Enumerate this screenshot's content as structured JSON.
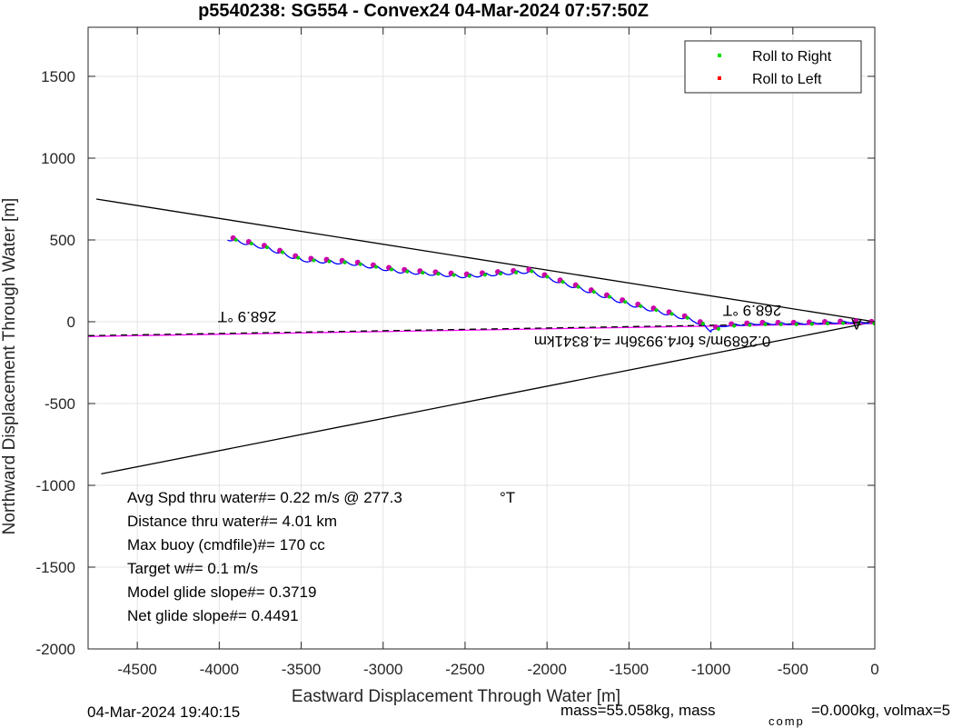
{
  "chart_data": {
    "type": "line",
    "title": "p5540238: SG554 - Convex24 04-Mar-2024 07:57:50Z",
    "xlabel": "Eastward Displacement Through Water [m]",
    "ylabel": "Northward Displacement Through Water [m]",
    "xlim": [
      -4800,
      0
    ],
    "ylim": [
      -2000,
      1800
    ],
    "xticks": [
      -4500,
      -4000,
      -3500,
      -3000,
      -2500,
      -2000,
      -1500,
      -1000,
      -500,
      0
    ],
    "yticks": [
      -2000,
      -1500,
      -1000,
      -500,
      0,
      500,
      1000,
      1500
    ],
    "xtick_labels": [
      "-4500",
      "-4000",
      "-3500",
      "-3000",
      "-2500",
      "-2000",
      "-1500",
      "-1000",
      "-500",
      "0"
    ],
    "ytick_labels": [
      "-2000",
      "-1500",
      "-1000",
      "-500",
      "0",
      "500",
      "1000",
      "1500"
    ],
    "grid": true,
    "legend_position": "top-right",
    "legend": [
      {
        "label": "Roll to Right",
        "color": "#00dd00"
      },
      {
        "label": "Roll to Left",
        "color": "#ff0000"
      }
    ],
    "track_color": "#0000ff",
    "track_anchors": {
      "x": [
        0,
        -150,
        -300,
        -500,
        -700,
        -900,
        -1000,
        -1100,
        -1500,
        -2000,
        -2100,
        -2500,
        -2900,
        -3200,
        -3500,
        -3700,
        -3950
      ],
      "y": [
        0,
        5,
        0,
        -5,
        -5,
        -15,
        -40,
        20,
        120,
        280,
        320,
        290,
        320,
        370,
        390,
        460,
        520
      ]
    },
    "envelope_lines": [
      {
        "name": "upper",
        "x": [
          -4750,
          0
        ],
        "y": [
          750,
          0
        ],
        "color": "#000000"
      },
      {
        "name": "lower",
        "x": [
          -4720,
          0
        ],
        "y": [
          -930,
          0
        ],
        "color": "#000000"
      }
    ],
    "heading_lines": [
      {
        "name": "magenta",
        "x": [
          -4800,
          0
        ],
        "y": [
          -90,
          -10
        ],
        "color": "#ff00ff"
      },
      {
        "name": "dashed",
        "x": [
          -4800,
          0
        ],
        "y": [
          -85,
          -5
        ],
        "color": "#000000",
        "dashed": true
      }
    ],
    "annotations": {
      "heading_left": "268.9 °T",
      "heading_right": "268.9 °T",
      "speed_label": "0.2689m/s for4.9936hr =4.8341km",
      "end_marker": "A"
    },
    "stats": [
      "Avg Spd thru water#=  0.22 m/s @ 277.3",
      "Distance thru water#=  4.01 km",
      "Max buoy (cmdfile)#= 170 cc",
      "Target w#= 0.1 m/s",
      "Model glide slope#= 0.3719",
      "Net glide slope#= 0.4491"
    ],
    "stats_unit": "°T"
  },
  "footer": {
    "timestamp": "04-Mar-2024 19:40:15",
    "mass_text": "mass=55.058kg, mass",
    "mass_sub": "comp",
    "mass_tail": "=0.000kg, volmax=5"
  }
}
